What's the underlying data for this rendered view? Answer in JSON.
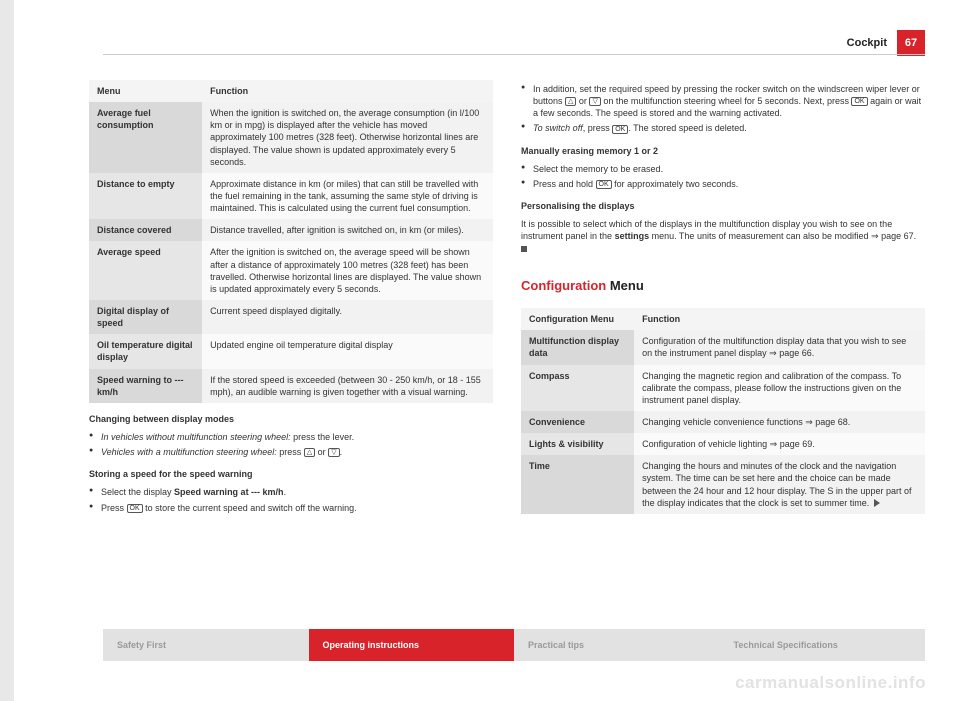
{
  "header": {
    "section": "Cockpit",
    "page": "67"
  },
  "table1": {
    "headers": [
      "Menu",
      "Function"
    ],
    "rows": [
      {
        "label": "Average fuel consumption",
        "desc": "When the ignition is switched on, the average consumption (in l/100 km or in mpg) is displayed after the vehicle has moved approximately 100 metres (328 feet). Otherwise horizontal lines are displayed. The value shown is updated approximately every 5 seconds."
      },
      {
        "label": "Distance to empty",
        "desc": "Approximate distance in km (or miles) that can still be travelled with the fuel remaining in the tank, assuming the same style of driving is maintained. This is calculated using the current fuel consumption."
      },
      {
        "label": "Distance covered",
        "desc": "Distance travelled, after ignition is switched on, in km (or miles)."
      },
      {
        "label": "Average speed",
        "desc": "After the ignition is switched on, the average speed will be shown after a distance of approximately 100 metres (328 feet) has been travelled. Otherwise horizontal lines are displayed. The value shown is updated approximately every 5 seconds."
      },
      {
        "label": "Digital display of speed",
        "desc": "Current speed displayed digitally."
      },
      {
        "label": "Oil temperature digital display",
        "desc": "Updated engine oil temperature digital display"
      },
      {
        "label": "Speed warning to --- km/h",
        "desc": "If the stored speed is exceeded (between 30 - 250 km/h, or 18 - 155 mph), an audible warning is given together with a visual warning."
      }
    ]
  },
  "col1": {
    "sub1": "Changing between display modes",
    "b1a": "In vehicles without multifunction steering wheel:",
    "b1b": " press the lever.",
    "b2a": "Vehicles with a multifunction steering wheel:",
    "b2b": " press ",
    "b2c": " or ",
    "sub2": "Storing a speed for the speed warning",
    "b3a": "Select the display ",
    "b3b": "Speed warning at --- km/h",
    "b4a": "Press ",
    "b4b": " to store the current speed and switch off the warning."
  },
  "col2": {
    "b5a": "In addition, set the required speed by pressing the rocker switch on the windscreen wiper lever or buttons ",
    "b5b": " or ",
    "b5c": " on the multifunction steering wheel for 5 seconds. Next, press ",
    "b5d": " again or wait a few seconds. The speed is stored and the warning activated.",
    "b6a": "To switch off",
    "b6b": ", press ",
    "b6c": ". The stored speed is deleted.",
    "sub3": "Manually erasing memory 1 or 2",
    "b7": "Select the memory to be erased.",
    "b8a": "Press and hold ",
    "b8b": " for approximately two seconds.",
    "sub4": "Personalising the displays",
    "p1a": "It is possible to select which of the displays in the multifunction display you wish to see on the instrument panel in the ",
    "p1b": "settings",
    "p1c": " menu. The units of measurement can also be modified ⇒ page 67.",
    "sectionTitle1": "Configuration",
    "sectionTitle2": " Menu"
  },
  "table2": {
    "headers": [
      "Configuration Menu",
      "Function"
    ],
    "rows": [
      {
        "label": "Multifunction display data",
        "desc": "Configuration of the multifunction display data that you wish to see on the instrument panel display ⇒ page 66."
      },
      {
        "label": "Compass",
        "desc": "Changing the magnetic region and calibration of the compass. To calibrate the compass, please follow the instructions given on the instrument panel display."
      },
      {
        "label": "Convenience",
        "desc": "Changing vehicle convenience functions ⇒ page 68."
      },
      {
        "label": "Lights & visibility",
        "desc": "Configuration of vehicle lighting ⇒ page 69."
      },
      {
        "label": "Time",
        "desc": "Changing the hours and minutes of the clock and the navigation system. The time can be set here and the choice can be made between the 24 hour and 12 hour display. The S in the upper part of the display indicates that the clock is set to summer time."
      }
    ]
  },
  "keys": {
    "up": "△",
    "down": "▽",
    "ok": "OK"
  },
  "footer": {
    "a": "Safety First",
    "b": "Operating instructions",
    "c": "Practical tips",
    "d": "Technical Specifications"
  },
  "watermark": "carmanualsonline.info"
}
